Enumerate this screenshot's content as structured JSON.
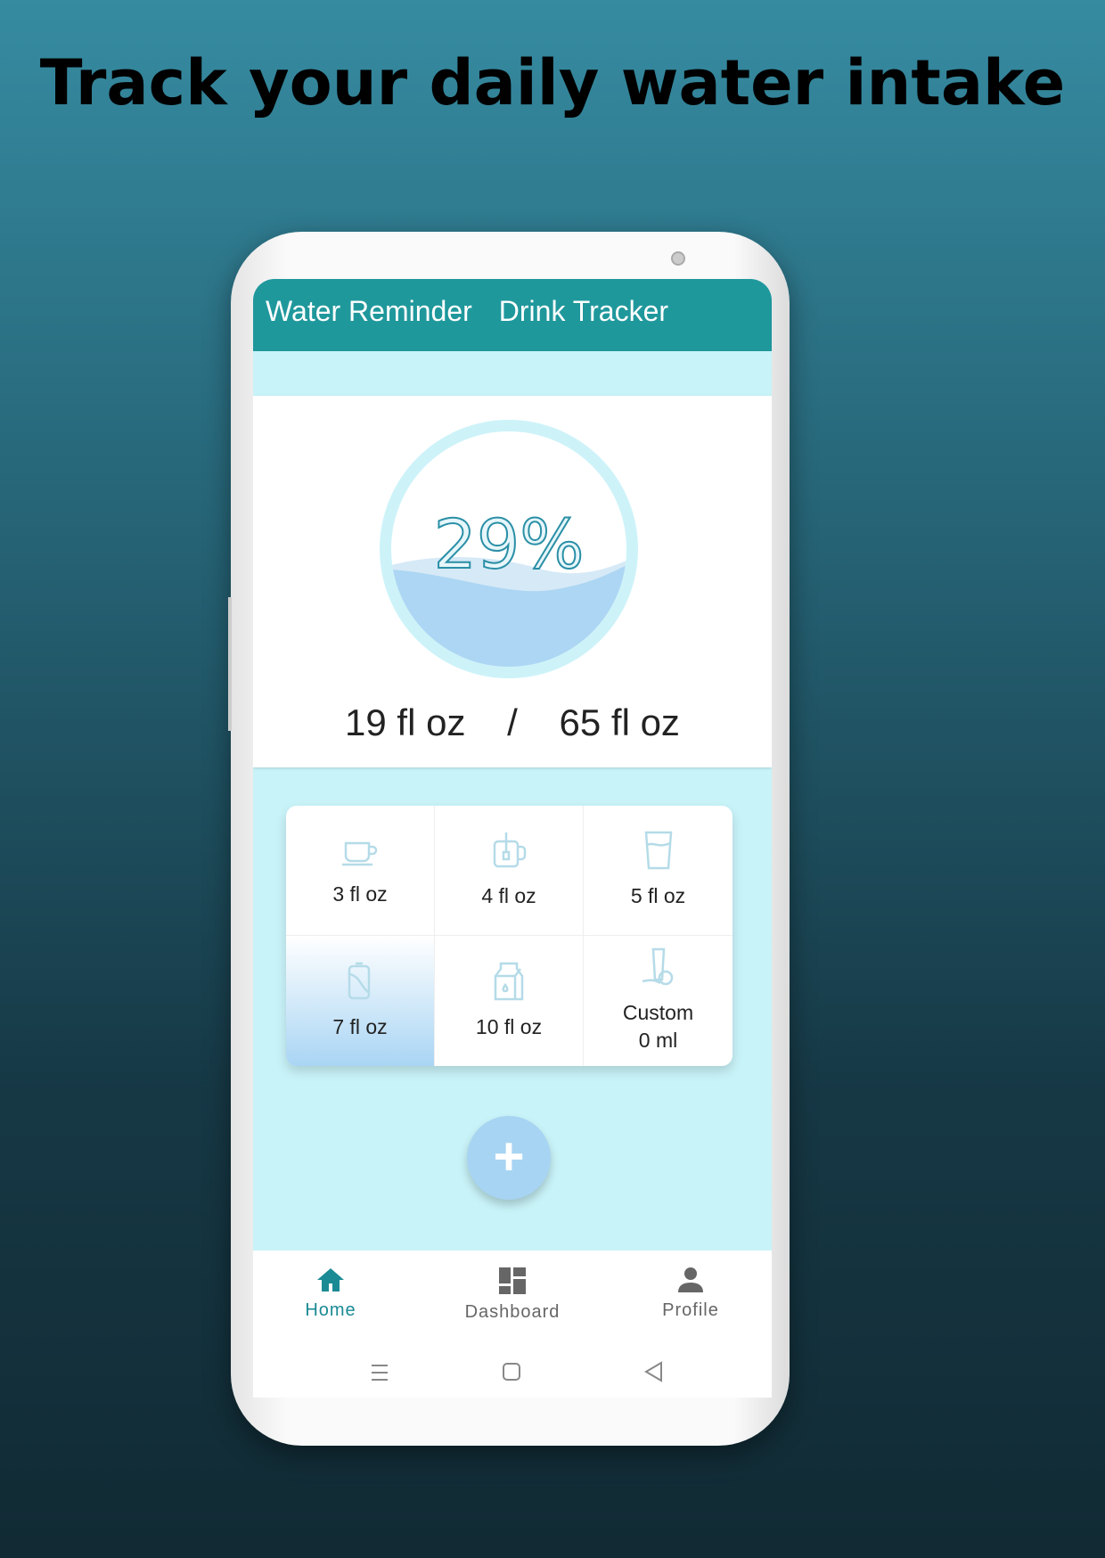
{
  "headline": "Track your daily water intake",
  "appbar": {
    "title_part1": "Water Reminder",
    "title_part2": "Drink Tracker",
    "color": "#1f989c"
  },
  "progress": {
    "percent_label": "29%",
    "percent": 29,
    "current": "19 fl oz",
    "separator": "/",
    "goal": "65 fl oz"
  },
  "drinks": [
    {
      "label": "3 fl oz",
      "icon": "coffee-cup-icon"
    },
    {
      "label": "4 fl oz",
      "icon": "tea-mug-icon"
    },
    {
      "label": "5 fl oz",
      "icon": "water-glass-icon"
    },
    {
      "label": "7 fl oz",
      "icon": "soda-can-icon",
      "selected": true
    },
    {
      "label": "10 fl oz",
      "icon": "milk-carton-icon"
    },
    {
      "label": "Custom",
      "sublabel": "0 ml",
      "icon": "juice-icon"
    }
  ],
  "fab": {
    "label": "+"
  },
  "nav": [
    {
      "label": "Home",
      "active": true
    },
    {
      "label": "Dashboard"
    },
    {
      "label": "Profile"
    }
  ]
}
